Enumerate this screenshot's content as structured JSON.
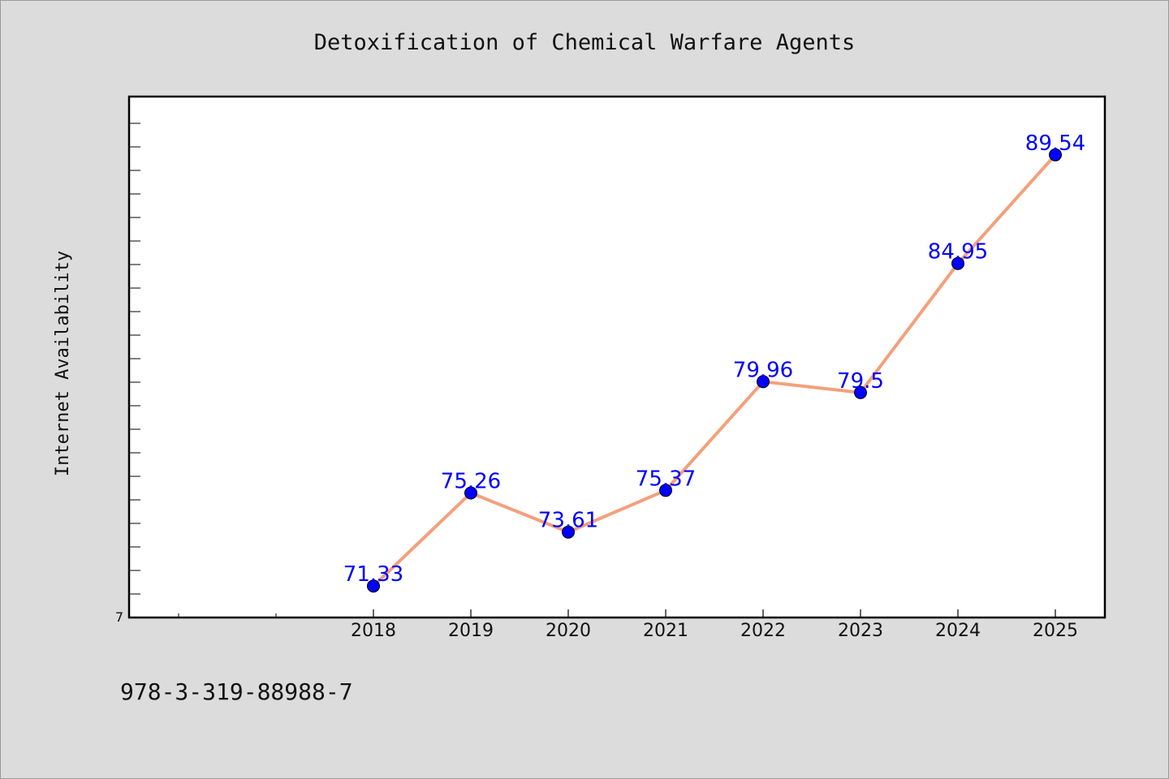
{
  "chart_data": {
    "type": "line",
    "title": "Detoxification of Chemical Warfare Agents",
    "ylabel": "Internet Availability",
    "xlabel": "",
    "categories": [
      "2018",
      "2019",
      "2020",
      "2021",
      "2022",
      "2023",
      "2024",
      "2025"
    ],
    "series": [
      {
        "values": [
          71.33,
          75.26,
          73.61,
          75.37,
          79.96,
          79.5,
          84.95,
          89.54
        ]
      }
    ],
    "ylim": [
      70,
      92
    ],
    "y_tick_labels": [
      "7"
    ],
    "grid": false,
    "legend": "none",
    "colors": {
      "line": "#f4a07c",
      "marker": "#0000ff",
      "data_label": "#0000ff",
      "plot_bg": "#ffffff",
      "page_bg": "#dcdcdc"
    }
  },
  "footer": {
    "isbn": "978-3-319-88988-7"
  }
}
